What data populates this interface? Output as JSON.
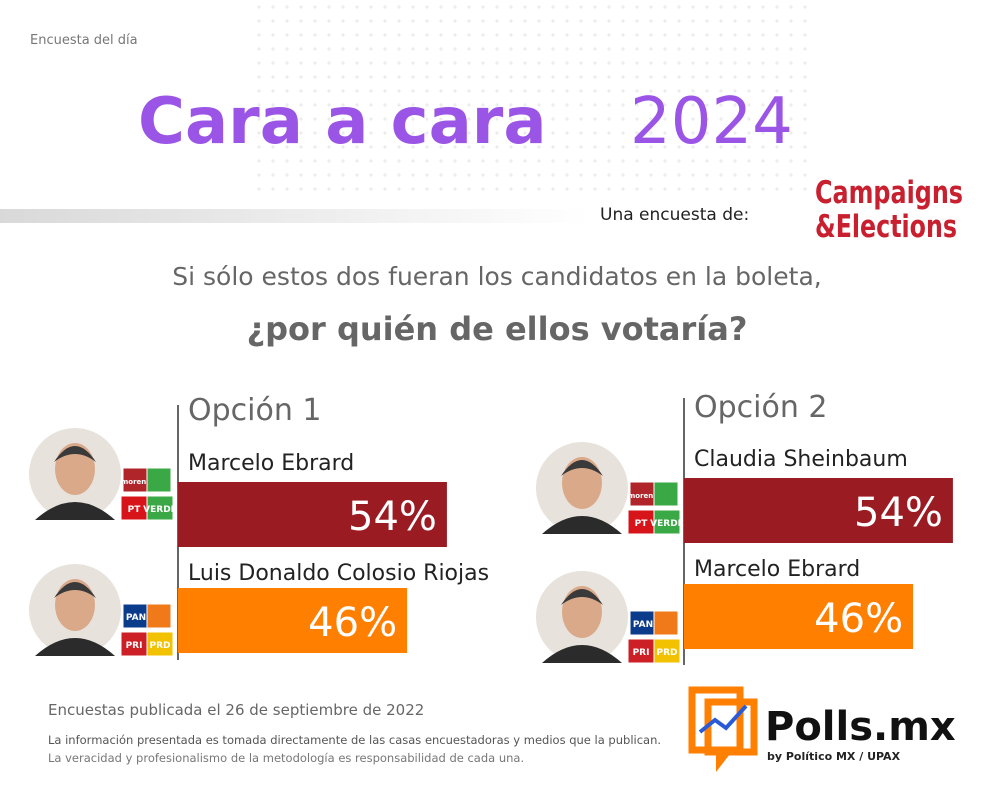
{
  "header": {
    "kicker": "Encuesta del día",
    "title_bold": "Cara a cara",
    "title_year": "2024",
    "sponsor_intro": "Una encuesta de:",
    "sponsor_line1": "Campaigns",
    "sponsor_line2": "&Elections"
  },
  "question": {
    "line1": "Si sólo estos dos fueran los candidatos en la boleta,",
    "line2": "¿por quién de ellos votaría?"
  },
  "chart_data": [
    {
      "type": "bar",
      "title": "Opción 1",
      "categories": [
        "Marcelo Ebrard",
        "Luis Donaldo Colosio Riojas"
      ],
      "values": [
        54,
        46
      ],
      "value_labels": [
        "54%",
        "46%"
      ],
      "colors": [
        "#9b1b23",
        "#ff7f00"
      ],
      "logos": [
        [
          "morena",
          "PT",
          "VERDE"
        ],
        [
          "PAN",
          "PRI",
          "PRD"
        ]
      ],
      "logo_colors": [
        [
          "#b0252a",
          "#d7141a",
          "#3aa845"
        ],
        [
          "#0b3c8c",
          "#cc1f26",
          "#f2c200"
        ]
      ]
    },
    {
      "type": "bar",
      "title": "Opción 2",
      "categories": [
        "Claudia Sheinbaum",
        "Marcelo Ebrard"
      ],
      "values": [
        54,
        46
      ],
      "value_labels": [
        "54%",
        "46%"
      ],
      "colors": [
        "#9b1b23",
        "#ff7f00"
      ],
      "logos": [
        [
          "morena",
          "PT",
          "VERDE"
        ],
        [
          "PAN",
          "PRI",
          "PRD"
        ]
      ],
      "logo_colors": [
        [
          "#b0252a",
          "#d7141a",
          "#3aa845"
        ],
        [
          "#0b3c8c",
          "#cc1f26",
          "#f2c200"
        ]
      ]
    }
  ],
  "footer": {
    "date_note": "Encuestas publicada el 26 de septiembre de 2022",
    "disclaimer1": "La información presentada es tomada directamente de las casas encuestadoras y medios que la publican.",
    "disclaimer2": "La veracidad y profesionalismo de la metodología es responsabilidad de cada una.",
    "brand": "Polls.mx",
    "brand_sub": "by Político MX / UPAX"
  }
}
